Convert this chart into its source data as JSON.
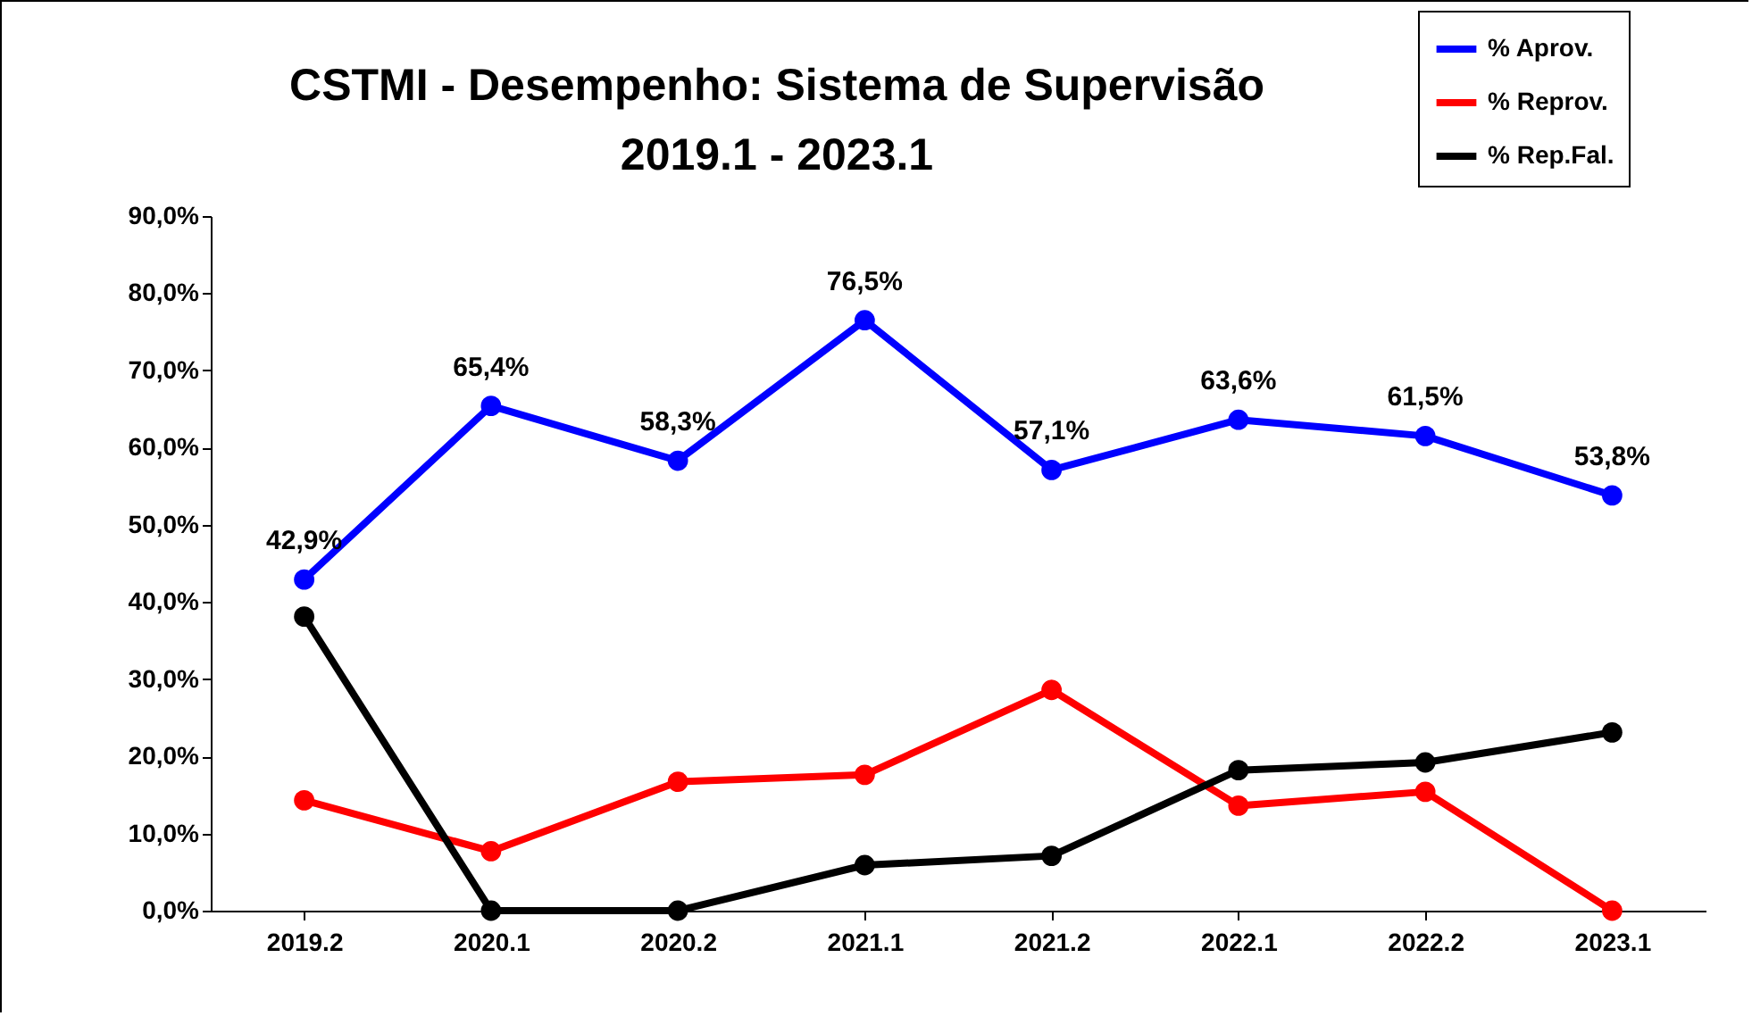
{
  "chart_data": {
    "type": "line",
    "title": "CSTMI - Desempenho: Sistema de Supervisão",
    "subtitle": "2019.1 - 2023.1",
    "categories": [
      "2019.2",
      "2020.1",
      "2020.2",
      "2021.1",
      "2021.2",
      "2022.1",
      "2022.2",
      "2023.1"
    ],
    "series": [
      {
        "name": "% Aprov.",
        "color": "#0000ff",
        "values": [
          42.9,
          65.4,
          58.3,
          76.5,
          57.1,
          63.6,
          61.5,
          53.8
        ],
        "value_labels": [
          "42,9%",
          "65,4%",
          "58,3%",
          "76,5%",
          "57,1%",
          "63,6%",
          "61,5%",
          "53,8%"
        ]
      },
      {
        "name": "% Reprov.",
        "color": "#ff0000",
        "values": [
          14.3,
          7.7,
          16.7,
          17.6,
          28.6,
          13.6,
          15.4,
          0
        ]
      },
      {
        "name": "% Rep.Fal.",
        "color": "#000000",
        "values": [
          38.1,
          0,
          0,
          5.9,
          7.1,
          18.2,
          19.2,
          23.1
        ]
      }
    ],
    "ylim": [
      0,
      90
    ],
    "yticks": [
      {
        "value": 0,
        "label": "0,0%"
      },
      {
        "value": 10,
        "label": "10,0%"
      },
      {
        "value": 20,
        "label": "20,0%"
      },
      {
        "value": 30,
        "label": "30,0%"
      },
      {
        "value": 40,
        "label": "40,0%"
      },
      {
        "value": 50,
        "label": "50,0%"
      },
      {
        "value": 60,
        "label": "60,0%"
      },
      {
        "value": 70,
        "label": "70,0%"
      },
      {
        "value": 80,
        "label": "80,0%"
      },
      {
        "value": 90,
        "label": "90,0%"
      }
    ],
    "grid": false,
    "legend": "top right",
    "marker": "circle",
    "line_style": "solid"
  }
}
